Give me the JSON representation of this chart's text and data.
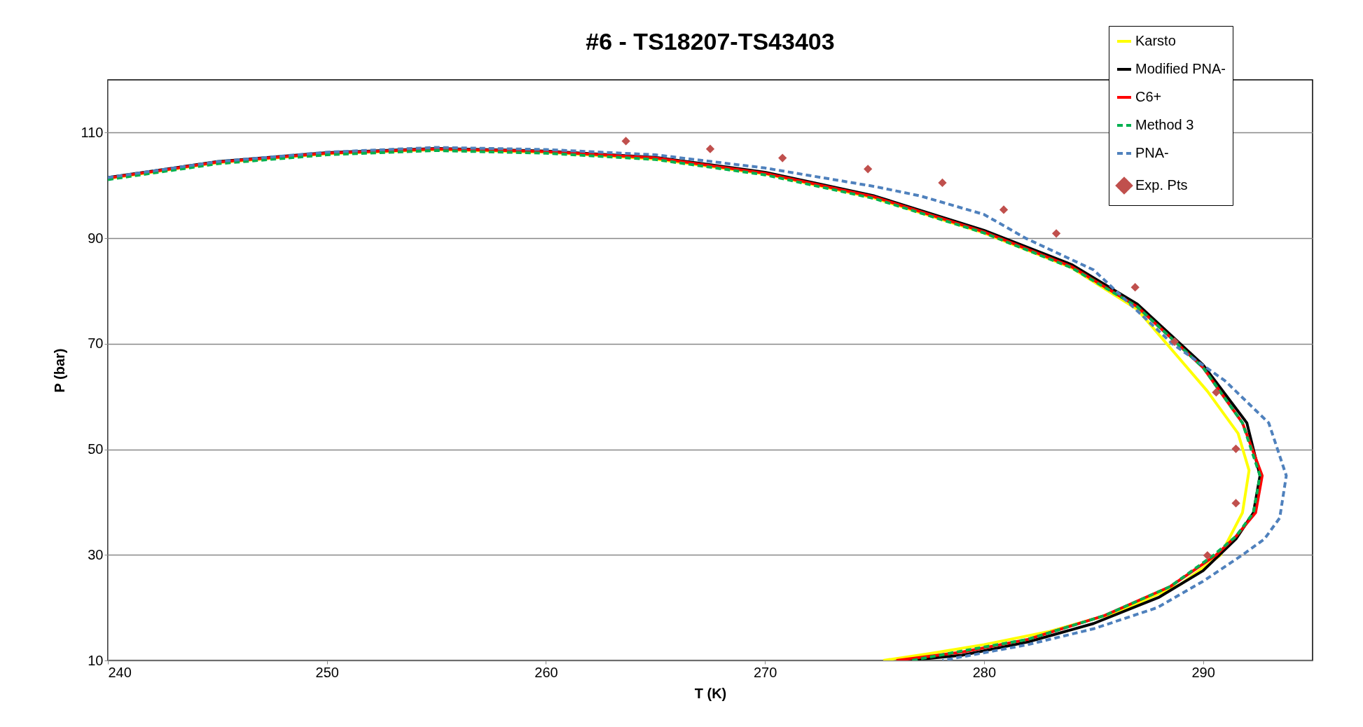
{
  "chart_data": {
    "type": "line",
    "title": "#6 - TS18207-TS43403",
    "xlabel": "T (K)",
    "ylabel": "P (bar)",
    "xlim": [
      240,
      295
    ],
    "xticks": [
      240,
      250,
      260,
      270,
      280,
      290
    ],
    "ylim": [
      10,
      120
    ],
    "yticks": [
      10,
      30,
      50,
      70,
      90,
      110
    ],
    "grid": "y",
    "legend": "top right",
    "series": [
      {
        "name": "Karsto",
        "color": "#ffff00",
        "line_style": "solid",
        "marker": "none",
        "x": [
          240,
          245,
          250,
          255,
          260,
          265,
          270,
          275,
          280,
          284,
          287,
          290.2,
          291.6,
          292.1,
          291.8,
          290.8,
          289,
          286,
          283,
          280,
          277.5,
          275.4
        ],
        "values": [
          101.3,
          104.3,
          106,
          106.8,
          106.3,
          105,
          102.2,
          97.6,
          91,
          84.4,
          76.5,
          61,
          53,
          46,
          38,
          30,
          24.5,
          19,
          15.5,
          13,
          11.3,
          10
        ]
      },
      {
        "name": "Modified PNA-",
        "color": "#000000",
        "line_style": "solid",
        "marker": "none",
        "x": [
          240,
          245,
          250,
          255,
          260,
          265,
          270,
          275,
          280,
          284,
          287,
          290,
          292,
          292.6,
          292.3,
          291.5,
          290,
          288,
          285,
          282,
          279,
          276.5
        ],
        "values": [
          101.5,
          104.5,
          106.2,
          107,
          106.5,
          105.3,
          102.5,
          98,
          91.5,
          85,
          77.5,
          66,
          55,
          45,
          38,
          33,
          27,
          22,
          17,
          13.5,
          11,
          10
        ]
      },
      {
        "name": "C6+",
        "color": "#ff0000",
        "line_style": "solid",
        "marker": "none",
        "x": [
          240,
          245,
          250,
          255,
          260,
          265,
          270,
          275,
          280,
          284,
          287,
          290,
          291.8,
          292.7,
          292.4,
          291.5,
          290.6,
          288.5,
          285.5,
          282,
          279,
          276
        ],
        "values": [
          101.4,
          104.4,
          106.1,
          106.9,
          106.4,
          105.2,
          102.3,
          97.8,
          91.2,
          84.6,
          77,
          65.5,
          55,
          45,
          38,
          33.5,
          30,
          24,
          18.5,
          14,
          11.6,
          10
        ]
      },
      {
        "name": "Method 3",
        "color": "#00b050",
        "line_style": "dashed",
        "marker": "none",
        "x": [
          240,
          245,
          250,
          255,
          260,
          265,
          270,
          275,
          280,
          284,
          287,
          290,
          291.8,
          292.6,
          292.3,
          291.5,
          290.5,
          288.5,
          285.5,
          282,
          279,
          276.7
        ],
        "values": [
          101.1,
          104.1,
          105.8,
          106.6,
          106.1,
          104.9,
          102,
          97.5,
          91,
          84.4,
          77,
          65.5,
          55,
          45,
          38,
          33.5,
          30,
          24,
          18.5,
          14,
          11.8,
          10
        ]
      },
      {
        "name": "PNA-",
        "color": "#4f81bd",
        "line_style": "dashed",
        "marker": "none",
        "x": [
          240,
          245,
          250,
          255,
          260,
          265,
          270,
          275,
          277.1,
          280,
          281.9,
          285,
          288.6,
          291,
          293,
          293.8,
          293.5,
          292.8,
          291.8,
          290,
          287.9,
          285,
          282,
          278.1
        ],
        "values": [
          101.5,
          104.5,
          106.3,
          107.2,
          106.8,
          105.8,
          103.3,
          99.8,
          98,
          94.5,
          90,
          84,
          70,
          63,
          55,
          45,
          37,
          33,
          30,
          25,
          20,
          16,
          13,
          10
        ]
      },
      {
        "name": "Exp. Pts",
        "type": "scatter",
        "color": "#c0504d",
        "marker": "diamond",
        "x": [
          263.65,
          267.5,
          270.8,
          274.7,
          278.1,
          280.9,
          283.3,
          286.9,
          288.7,
          290.6,
          291.5,
          291.5,
          290.2
        ],
        "values": [
          108.4,
          106.9,
          105.2,
          103.1,
          100.5,
          95.4,
          90.9,
          80.7,
          70.4,
          60.8,
          50.1,
          39.8,
          29.9
        ]
      }
    ]
  }
}
